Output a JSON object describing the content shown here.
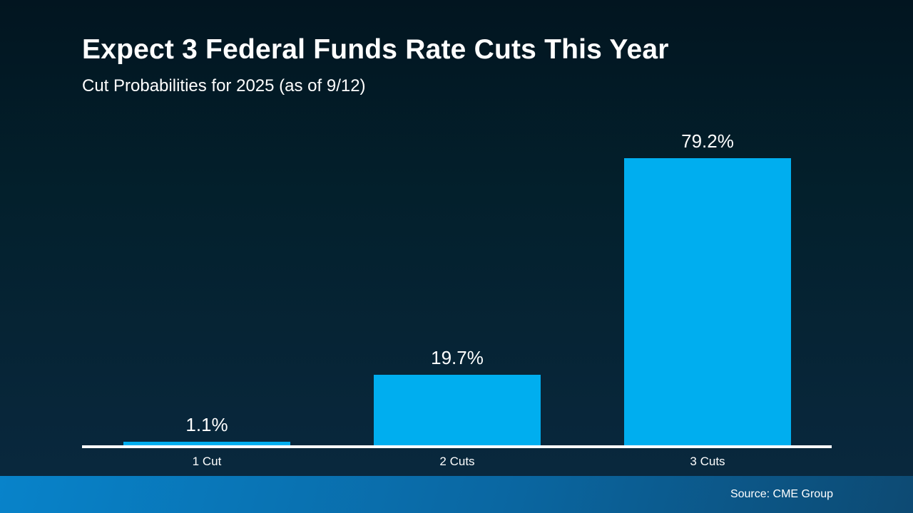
{
  "header": {
    "title": "Expect 3 Federal Funds Rate Cuts This Year",
    "subtitle": "Cut Probabilities for 2025 (as of 9/12)"
  },
  "footer": {
    "source": "Source: CME Group"
  },
  "colors": {
    "bar": "#00AEEF",
    "background_top": "#021520",
    "background_bottom": "#0a2940",
    "axis": "#ffffff",
    "text": "#ffffff",
    "footer_gradient_left": "#0883ca",
    "footer_gradient_right": "#0d4a73"
  },
  "chart_data": {
    "type": "bar",
    "title": "Expect 3 Federal Funds Rate Cuts This Year",
    "subtitle": "Cut Probabilities for 2025 (as of 9/12)",
    "categories": [
      "1 Cut",
      "2 Cuts",
      "3 Cuts"
    ],
    "values": [
      1.1,
      19.7,
      79.2
    ],
    "value_labels": [
      "1.1%",
      "19.7%",
      "79.2%"
    ],
    "unit": "%",
    "xlabel": "",
    "ylabel": "",
    "ylim": [
      0,
      85
    ],
    "grid": false,
    "legend": "none",
    "bar_color": "#00AEEF",
    "source": "Source: CME Group"
  }
}
